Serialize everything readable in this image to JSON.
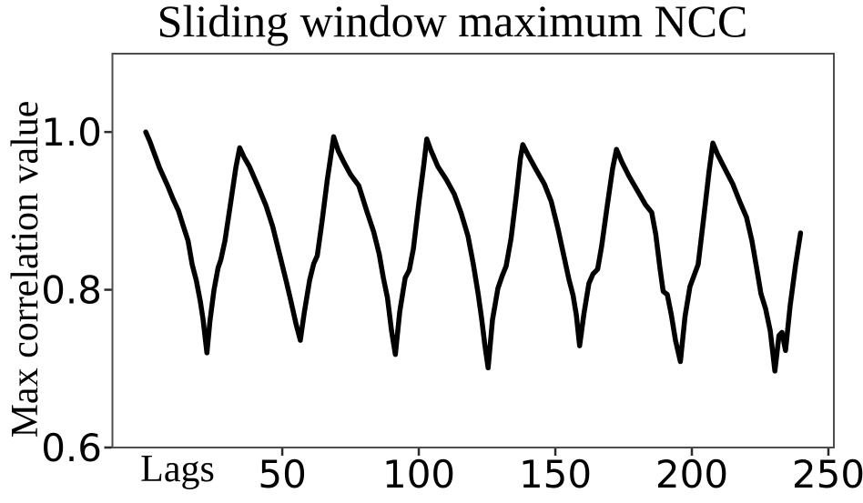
{
  "figure": {
    "background_color": "#ffffff",
    "text_color": "#000000"
  },
  "chart_data": {
    "type": "line",
    "title": "Sliding window maximum NCC",
    "ylabel": "Max correlation value",
    "xlabel": "Lags",
    "xlabel_position": "below-axis-left-of-ticks",
    "grid": false,
    "legend": "none",
    "xlim": [
      -12.2,
      252
    ],
    "ylim": [
      0.6,
      1.0993
    ],
    "xticks": [
      {
        "value": 50,
        "label": "50"
      },
      {
        "value": 100,
        "label": "100"
      },
      {
        "value": 150,
        "label": "150"
      },
      {
        "value": 200,
        "label": "200"
      },
      {
        "value": 250,
        "label": "250"
      }
    ],
    "yticks": [
      {
        "value": 0.6,
        "label": "0.6"
      },
      {
        "value": 0.8,
        "label": "0.8"
      },
      {
        "value": 1.0,
        "label": "1.0"
      }
    ],
    "line_color": "#000000",
    "line_width": 5.5,
    "spine_color": "#4d4d4d",
    "tick_color": "#2b2b2b",
    "series": [
      {
        "name": "sliding-window-max-ncc",
        "points": [
          [
            0,
            1.0
          ],
          [
            1.5,
            0.988
          ],
          [
            3,
            0.974
          ],
          [
            5,
            0.955
          ],
          [
            8,
            0.932
          ],
          [
            10,
            0.915
          ],
          [
            12,
            0.9
          ],
          [
            14,
            0.878
          ],
          [
            15.5,
            0.862
          ],
          [
            17,
            0.832
          ],
          [
            18.5,
            0.812
          ],
          [
            20,
            0.785
          ],
          [
            21,
            0.762
          ],
          [
            22.4,
            0.72
          ],
          [
            23.5,
            0.76
          ],
          [
            25,
            0.8
          ],
          [
            26.5,
            0.828
          ],
          [
            27.5,
            0.838
          ],
          [
            29,
            0.862
          ],
          [
            31,
            0.908
          ],
          [
            33,
            0.955
          ],
          [
            34.4,
            0.98
          ],
          [
            36,
            0.968
          ],
          [
            38,
            0.956
          ],
          [
            41,
            0.932
          ],
          [
            44,
            0.907
          ],
          [
            46.5,
            0.88
          ],
          [
            49,
            0.845
          ],
          [
            51.5,
            0.81
          ],
          [
            53,
            0.788
          ],
          [
            55,
            0.757
          ],
          [
            56.6,
            0.736
          ],
          [
            58,
            0.77
          ],
          [
            60,
            0.812
          ],
          [
            61.5,
            0.833
          ],
          [
            62.8,
            0.843
          ],
          [
            64.5,
            0.885
          ],
          [
            66.5,
            0.94
          ],
          [
            68,
            0.975
          ],
          [
            68.8,
            0.994
          ],
          [
            70.5,
            0.976
          ],
          [
            72.5,
            0.962
          ],
          [
            75,
            0.946
          ],
          [
            78,
            0.932
          ],
          [
            81,
            0.899
          ],
          [
            83.5,
            0.873
          ],
          [
            85.5,
            0.845
          ],
          [
            87,
            0.815
          ],
          [
            88.5,
            0.79
          ],
          [
            90,
            0.748
          ],
          [
            91.4,
            0.718
          ],
          [
            93,
            0.772
          ],
          [
            95,
            0.815
          ],
          [
            96.5,
            0.825
          ],
          [
            98,
            0.852
          ],
          [
            100,
            0.91
          ],
          [
            101.8,
            0.958
          ],
          [
            102.9,
            0.991
          ],
          [
            104.5,
            0.976
          ],
          [
            107,
            0.956
          ],
          [
            110,
            0.94
          ],
          [
            113,
            0.921
          ],
          [
            115.5,
            0.897
          ],
          [
            118,
            0.868
          ],
          [
            120,
            0.832
          ],
          [
            121.7,
            0.796
          ],
          [
            123,
            0.764
          ],
          [
            124.2,
            0.73
          ],
          [
            125.4,
            0.701
          ],
          [
            127,
            0.762
          ],
          [
            129,
            0.802
          ],
          [
            130.6,
            0.818
          ],
          [
            132,
            0.83
          ],
          [
            133.8,
            0.865
          ],
          [
            135.8,
            0.922
          ],
          [
            137.2,
            0.966
          ],
          [
            138.1,
            0.984
          ],
          [
            140,
            0.971
          ],
          [
            143,
            0.952
          ],
          [
            146,
            0.934
          ],
          [
            148.5,
            0.912
          ],
          [
            151,
            0.877
          ],
          [
            153,
            0.845
          ],
          [
            155,
            0.813
          ],
          [
            156.5,
            0.793
          ],
          [
            157.7,
            0.768
          ],
          [
            158.9,
            0.729
          ],
          [
            160.5,
            0.77
          ],
          [
            162.3,
            0.808
          ],
          [
            163.8,
            0.82
          ],
          [
            165.5,
            0.826
          ],
          [
            167,
            0.856
          ],
          [
            169,
            0.906
          ],
          [
            171,
            0.954
          ],
          [
            172.4,
            0.978
          ],
          [
            174.5,
            0.961
          ],
          [
            177,
            0.944
          ],
          [
            180,
            0.926
          ],
          [
            183,
            0.908
          ],
          [
            185.3,
            0.898
          ],
          [
            186.8,
            0.87
          ],
          [
            188.3,
            0.828
          ],
          [
            189.5,
            0.798
          ],
          [
            191,
            0.794
          ],
          [
            192.5,
            0.768
          ],
          [
            194,
            0.736
          ],
          [
            195.8,
            0.709
          ],
          [
            197.5,
            0.766
          ],
          [
            199.3,
            0.804
          ],
          [
            200.8,
            0.818
          ],
          [
            202.3,
            0.832
          ],
          [
            204.3,
            0.89
          ],
          [
            206.3,
            0.95
          ],
          [
            207.7,
            0.986
          ],
          [
            209.5,
            0.971
          ],
          [
            212,
            0.954
          ],
          [
            215,
            0.934
          ],
          [
            217.5,
            0.912
          ],
          [
            220,
            0.892
          ],
          [
            222,
            0.862
          ],
          [
            223.7,
            0.828
          ],
          [
            225.3,
            0.795
          ],
          [
            227,
            0.776
          ],
          [
            228.7,
            0.748
          ],
          [
            230.4,
            0.697
          ],
          [
            231.9,
            0.742
          ],
          [
            233,
            0.746
          ],
          [
            234.3,
            0.723
          ],
          [
            236,
            0.78
          ],
          [
            238,
            0.832
          ],
          [
            239.8,
            0.872
          ]
        ]
      }
    ]
  }
}
